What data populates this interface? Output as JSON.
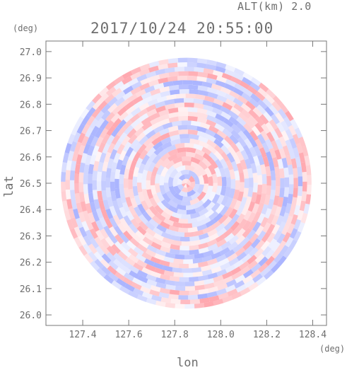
{
  "header": {
    "altitude_label": "ALT(km) 2.0",
    "timestamp": "2017/10/24 20:55:00"
  },
  "chart_data": {
    "type": "heatmap",
    "title": "2017/10/24 20:55:00",
    "subtitle": "ALT(km) 2.0",
    "xlabel": "lon",
    "ylabel": "lat",
    "x_unit": "(deg)",
    "y_unit": "(deg)",
    "xlim": [
      127.24,
      128.46
    ],
    "ylim": [
      25.96,
      27.04
    ],
    "x_ticks": [
      127.4,
      127.6,
      127.8,
      128.0,
      128.2,
      128.4
    ],
    "x_tick_labels": [
      "127.4",
      "127.6",
      "127.8",
      "128.0",
      "128.2",
      "128.4"
    ],
    "y_ticks": [
      26.0,
      26.1,
      26.2,
      26.3,
      26.4,
      26.5,
      26.6,
      26.7,
      26.8,
      26.9,
      27.0
    ],
    "y_tick_labels": [
      "26.0",
      "26.1",
      "26.2",
      "26.3",
      "26.4",
      "26.5",
      "26.6",
      "26.7",
      "26.8",
      "26.9",
      "27.0"
    ],
    "radar_center": {
      "lon": 127.85,
      "lat": 26.5
    },
    "radar_range_deg": 0.545,
    "colormap": {
      "positive": "#ff9aa2",
      "zero": "#ffffff",
      "negative": "#9ca8ff"
    },
    "grid": false
  }
}
